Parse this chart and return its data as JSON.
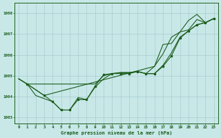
{
  "title": "Graphe pression niveau de la mer (hPa)",
  "bg_color": "#c8e8e8",
  "grid_color": "#a8cccc",
  "line_color": "#1a5c1a",
  "xlim": [
    -0.5,
    23.5
  ],
  "ylim": [
    1002.7,
    1008.5
  ],
  "yticks": [
    1003,
    1004,
    1005,
    1006,
    1007,
    1008
  ],
  "xticks": [
    0,
    1,
    2,
    3,
    4,
    5,
    6,
    7,
    8,
    9,
    10,
    11,
    12,
    13,
    14,
    15,
    16,
    17,
    18,
    19,
    20,
    21,
    22,
    23
  ],
  "series_flat": {
    "x": [
      0,
      1,
      2,
      3,
      4,
      5,
      6,
      7,
      8,
      9,
      10,
      11,
      12,
      13,
      14,
      15,
      16,
      17,
      18,
      19,
      20,
      21,
      22,
      23
    ],
    "y": [
      1004.85,
      1004.6,
      1004.6,
      1004.6,
      1004.6,
      1004.6,
      1004.6,
      1004.6,
      1004.6,
      1004.6,
      1005.0,
      1005.1,
      1005.15,
      1005.15,
      1005.2,
      1005.1,
      1005.1,
      1005.5,
      1006.1,
      1006.85,
      1007.15,
      1007.45,
      1007.55,
      1007.75
    ]
  },
  "series_marker": {
    "x": [
      1,
      3,
      4,
      5,
      6,
      7,
      8,
      9,
      10,
      11,
      12,
      13,
      14,
      15,
      16,
      17,
      18,
      19,
      20,
      21,
      22,
      23
    ],
    "y": [
      1004.6,
      1004.05,
      1003.75,
      1003.35,
      1003.35,
      1003.85,
      1003.85,
      1004.5,
      1005.05,
      1005.1,
      1005.1,
      1005.1,
      1005.2,
      1005.1,
      1005.1,
      1005.45,
      1005.95,
      1006.8,
      1007.15,
      1007.45,
      1007.55,
      1007.75
    ]
  },
  "series_high": {
    "x": [
      0,
      1,
      2,
      3,
      4,
      5,
      6,
      7,
      8,
      9,
      10,
      11,
      12,
      13,
      14,
      15,
      16,
      17,
      18,
      19,
      20,
      21,
      22,
      23
    ],
    "y": [
      1004.85,
      1004.6,
      1004.05,
      1003.9,
      1003.75,
      1003.35,
      1003.35,
      1003.95,
      1003.85,
      1004.45,
      1004.85,
      1005.1,
      1005.15,
      1005.15,
      1005.2,
      1005.1,
      1005.45,
      1006.5,
      1006.55,
      1007.1,
      1007.65,
      1007.95,
      1007.55,
      1007.75
    ]
  },
  "series_top": {
    "x": [
      0,
      1,
      3,
      16,
      17,
      18,
      19,
      20,
      21,
      22,
      23
    ],
    "y": [
      1004.85,
      1004.6,
      1004.05,
      1005.45,
      1006.05,
      1006.85,
      1007.1,
      1007.2,
      1007.7,
      1007.55,
      1007.75
    ]
  }
}
